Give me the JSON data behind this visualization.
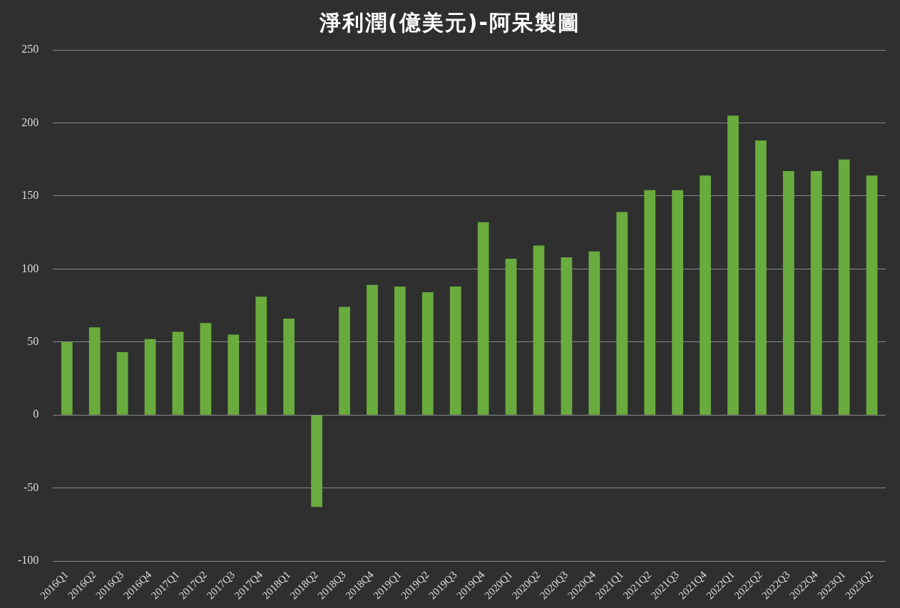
{
  "chart_data": {
    "type": "bar",
    "title": "淨利潤(億美元)-阿呆製圖",
    "categories": [
      "2016Q1",
      "2016Q2",
      "2016Q3",
      "2016Q4",
      "2017Q1",
      "2017Q2",
      "2017Q3",
      "2017Q4",
      "2018Q1",
      "2018Q2",
      "2018Q3",
      "2018Q4",
      "2019Q1",
      "2019Q2",
      "2019Q3",
      "2019Q4",
      "2020Q1",
      "2020Q2",
      "2020Q3",
      "2020Q4",
      "2021Q1",
      "2021Q2",
      "2021Q3",
      "2021Q4",
      "2022Q1",
      "2022Q2",
      "2022Q3",
      "2022Q4",
      "2023Q1",
      "2023Q2"
    ],
    "values": [
      50,
      60,
      43,
      52,
      57,
      63,
      55,
      81,
      66,
      -63,
      74,
      89,
      88,
      84,
      88,
      132,
      107,
      116,
      108,
      112,
      139,
      154,
      154,
      164,
      205,
      188,
      167,
      167,
      175,
      164
    ],
    "color": "#6aab3e",
    "ylim": [
      -100,
      250
    ],
    "yticks": [
      -100,
      -50,
      0,
      50,
      100,
      150,
      200,
      250
    ],
    "grid": "y"
  }
}
